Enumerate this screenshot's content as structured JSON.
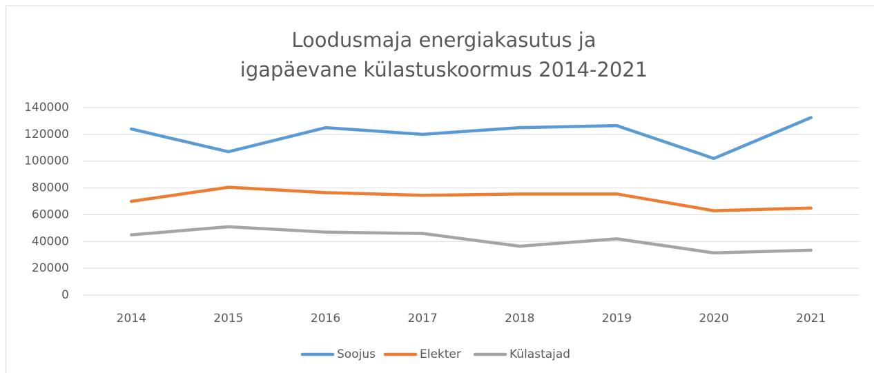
{
  "chart_data": {
    "type": "line",
    "title": [
      "Loodusmaja energiakasutus ja",
      "igapäevane külastuskoormus 2014-2021"
    ],
    "categories": [
      "2014",
      "2015",
      "2016",
      "2017",
      "2018",
      "2019",
      "2020",
      "2021"
    ],
    "series": [
      {
        "name": "Soojus",
        "color": "#5b9bd5",
        "values": [
          124000,
          107000,
          125000,
          120000,
          125000,
          126500,
          102000,
          132500
        ]
      },
      {
        "name": "Elekter",
        "color": "#ed7d31",
        "values": [
          70000,
          80500,
          76500,
          74500,
          75500,
          75500,
          63000,
          65000
        ]
      },
      {
        "name": "Külastajad",
        "color": "#a5a5a5",
        "values": [
          45000,
          51000,
          47000,
          46000,
          36500,
          42000,
          31500,
          33500
        ]
      }
    ],
    "ylim": [
      0,
      140000
    ],
    "yticks": [
      0,
      20000,
      40000,
      60000,
      80000,
      100000,
      120000,
      140000
    ],
    "grid": true,
    "legend": "bottom"
  }
}
